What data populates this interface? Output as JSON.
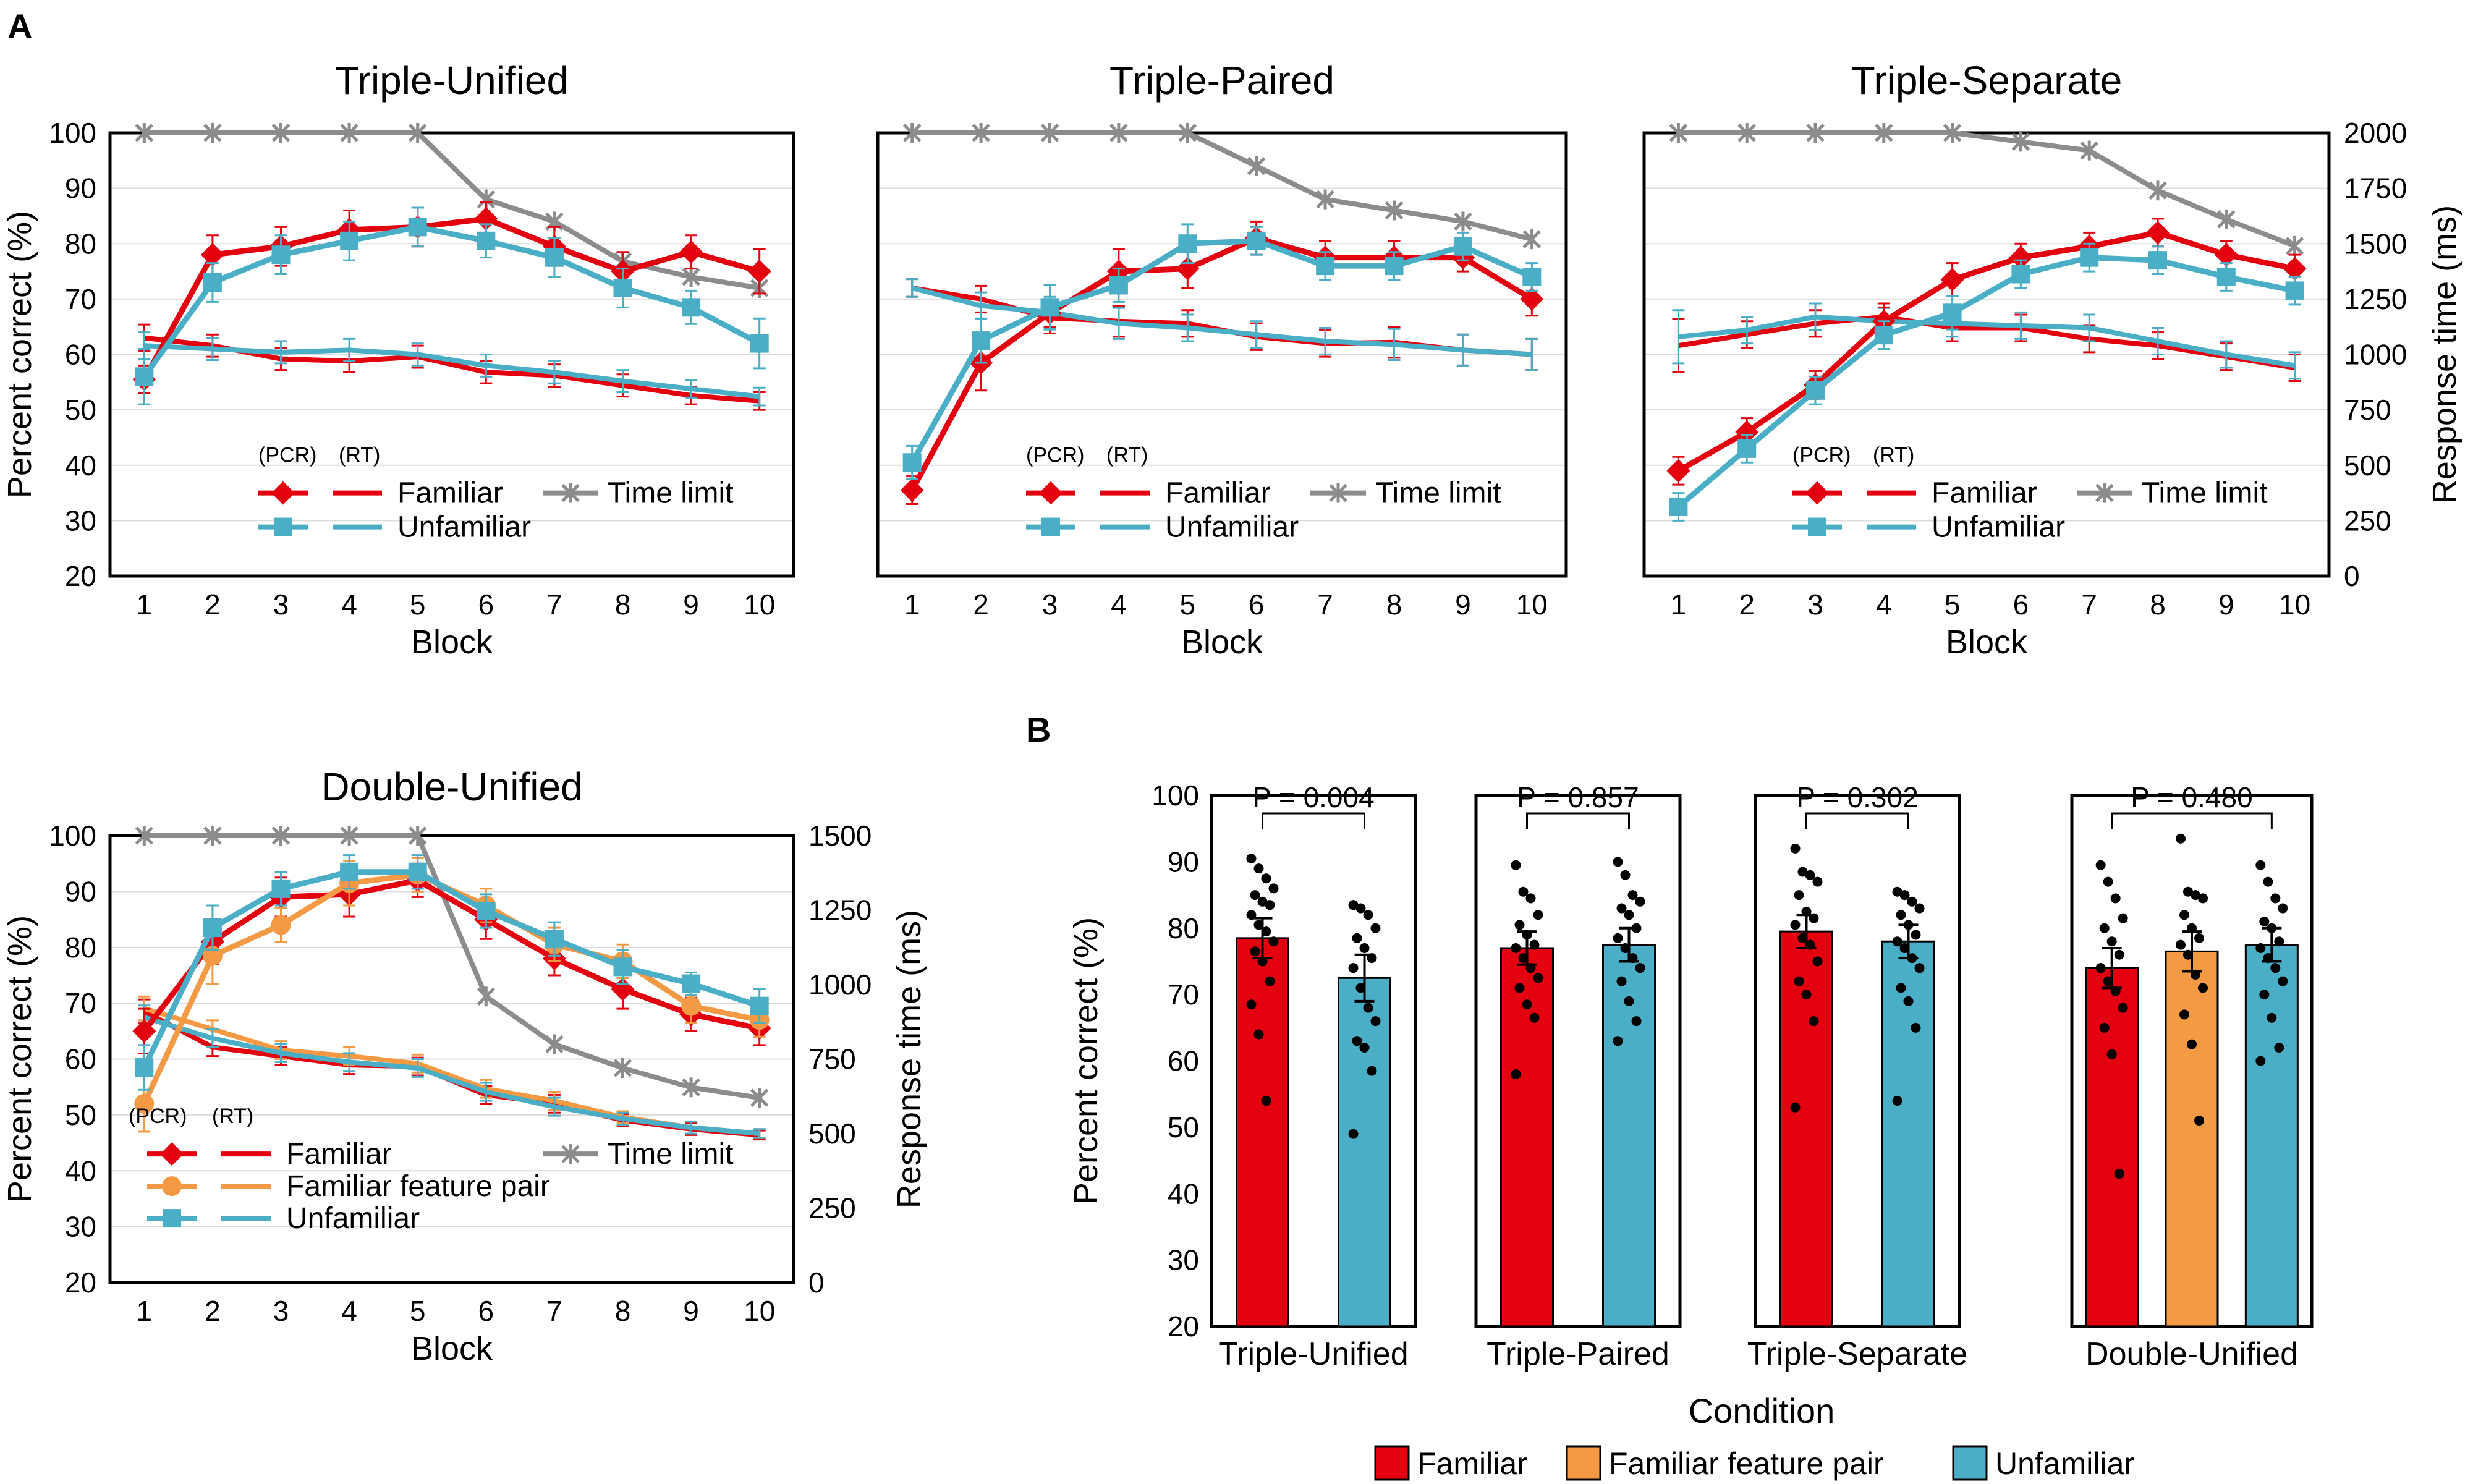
{
  "colors": {
    "familiar": "#e3000f",
    "familiar_pair": "#f49a44",
    "unfamiliar": "#4aaec6",
    "time_limit": "#8c8c8c"
  },
  "panel_labels": {
    "a": "A",
    "b": "B"
  },
  "legend_headers": {
    "pcr": "(PCR)",
    "rt": "(RT)"
  },
  "chart_data": [
    {
      "id": "triple-unified",
      "type": "line",
      "title": "Triple-Unified",
      "xlabel": "Block",
      "ylabel": "Percent correct (%)",
      "y2label": "",
      "x": [
        1,
        2,
        3,
        4,
        5,
        6,
        7,
        8,
        9,
        10
      ],
      "ylim": [
        20,
        100
      ],
      "yticks": [
        20,
        30,
        40,
        50,
        60,
        70,
        80,
        90,
        100
      ],
      "y2lim": [
        0,
        2000
      ],
      "y2ticks": [],
      "series": [
        {
          "key": "fam_pcr",
          "name": "Familiar",
          "kind": "pcr",
          "color": "familiar",
          "marker": "diamond",
          "values": [
            55.5,
            78,
            79.5,
            82.5,
            83,
            84.5,
            79.5,
            75,
            78.5,
            75
          ],
          "err": [
            2.5,
            3.5,
            3.5,
            3.5,
            3.5,
            3,
            3.5,
            3.5,
            3,
            4
          ]
        },
        {
          "key": "unf_pcr",
          "name": "Unfamiliar",
          "kind": "pcr",
          "color": "unfamiliar",
          "marker": "square",
          "values": [
            56,
            73,
            78,
            80.5,
            83,
            80.5,
            77.5,
            72,
            68.5,
            62
          ],
          "err": [
            5,
            3.5,
            3.5,
            3.5,
            3.5,
            3,
            3.5,
            3.5,
            3,
            4.5
          ]
        },
        {
          "key": "fam_rt",
          "name": "Familiar",
          "kind": "rt",
          "color": "familiar",
          "values": [
            1075,
            1040,
            980,
            970,
            990,
            920,
            905,
            860,
            815,
            790
          ],
          "err": [
            60,
            50,
            50,
            50,
            50,
            50,
            50,
            50,
            40,
            40
          ]
        },
        {
          "key": "unf_rt",
          "name": "Unfamiliar",
          "kind": "rt",
          "color": "unfamiliar",
          "values": [
            1040,
            1025,
            1010,
            1020,
            1000,
            950,
            920,
            880,
            845,
            810
          ],
          "err": [
            60,
            50,
            50,
            50,
            50,
            50,
            50,
            50,
            40,
            40
          ]
        },
        {
          "key": "tl",
          "name": "Time limit",
          "kind": "tl",
          "color": "time_limit",
          "values": [
            2000,
            2000,
            2000,
            2000,
            2000,
            1700,
            1600,
            1420,
            1350,
            1300
          ],
          "err": []
        }
      ]
    },
    {
      "id": "triple-paired",
      "type": "line",
      "title": "Triple-Paired",
      "xlabel": "Block",
      "ylabel": "",
      "y2label": "",
      "x": [
        1,
        2,
        3,
        4,
        5,
        6,
        7,
        8,
        9,
        10
      ],
      "ylim": [
        20,
        100
      ],
      "yticks": [],
      "y2lim": [
        0,
        2000
      ],
      "y2ticks": [],
      "series": [
        {
          "key": "fam_pcr",
          "name": "Familiar",
          "kind": "pcr",
          "color": "familiar",
          "marker": "diamond",
          "values": [
            35.5,
            58.5,
            67.5,
            75,
            75.5,
            81,
            77.5,
            77.5,
            77.5,
            70
          ],
          "err": [
            2.5,
            5,
            2.5,
            4,
            3.5,
            3,
            3,
            3,
            2.5,
            3
          ]
        },
        {
          "key": "unf_pcr",
          "name": "Unfamiliar",
          "kind": "pcr",
          "color": "unfamiliar",
          "marker": "square",
          "values": [
            40.5,
            62.5,
            68.5,
            72.5,
            80,
            80.5,
            76,
            76,
            79.5,
            74
          ],
          "err": [
            3,
            4,
            4,
            3,
            3.5,
            2.5,
            2.5,
            2.5,
            2.5,
            2.5
          ]
        },
        {
          "key": "fam_rt",
          "name": "Familiar",
          "kind": "rt",
          "color": "familiar",
          "values": [
            1300,
            1250,
            1165,
            1150,
            1140,
            1080,
            1050,
            1055,
            1020,
            1000
          ],
          "err": [
            40,
            60,
            70,
            70,
            60,
            60,
            60,
            70,
            70,
            70
          ]
        },
        {
          "key": "unf_rt",
          "name": "Unfamiliar",
          "kind": "rt",
          "color": "unfamiliar",
          "values": [
            1300,
            1220,
            1190,
            1140,
            1120,
            1090,
            1060,
            1045,
            1020,
            1000
          ],
          "err": [
            40,
            60,
            70,
            70,
            60,
            60,
            60,
            70,
            70,
            70
          ]
        },
        {
          "key": "tl",
          "name": "Time limit",
          "kind": "tl",
          "color": "time_limit",
          "values": [
            2000,
            2000,
            2000,
            2000,
            2000,
            1850,
            1700,
            1650,
            1600,
            1520
          ],
          "err": []
        }
      ]
    },
    {
      "id": "triple-separate",
      "type": "line",
      "title": "Triple-Separate",
      "xlabel": "Block",
      "ylabel": "",
      "y2label": "Response time (ms)",
      "x": [
        1,
        2,
        3,
        4,
        5,
        6,
        7,
        8,
        9,
        10
      ],
      "ylim": [
        20,
        100
      ],
      "yticks": [],
      "y2lim": [
        0,
        2000
      ],
      "y2ticks": [
        0,
        250,
        500,
        750,
        1000,
        1250,
        1500,
        1750,
        2000
      ],
      "series": [
        {
          "key": "fam_pcr",
          "name": "Familiar",
          "kind": "pcr",
          "color": "familiar",
          "marker": "diamond",
          "values": [
            39,
            46,
            54.5,
            66,
            73.5,
            77.5,
            79.5,
            82,
            78,
            75.5
          ],
          "err": [
            2.5,
            2.5,
            2.5,
            2.5,
            3,
            2.5,
            2.5,
            2.5,
            2.5,
            2.5
          ]
        },
        {
          "key": "unf_pcr",
          "name": "Unfamiliar",
          "kind": "pcr",
          "color": "unfamiliar",
          "marker": "square",
          "values": [
            32.5,
            43,
            53.5,
            63.5,
            67.5,
            74.5,
            77.5,
            77,
            74,
            71.5
          ],
          "err": [
            2.5,
            2.5,
            2.5,
            2.5,
            3,
            2.5,
            2.5,
            2.5,
            2.5,
            2.5
          ]
        },
        {
          "key": "fam_rt",
          "name": "Familiar",
          "kind": "rt",
          "color": "familiar",
          "values": [
            1040,
            1090,
            1140,
            1170,
            1120,
            1120,
            1070,
            1040,
            990,
            940
          ],
          "err": [
            120,
            60,
            60,
            60,
            60,
            60,
            60,
            60,
            60,
            60
          ]
        },
        {
          "key": "unf_rt",
          "name": "Unfamiliar",
          "kind": "rt",
          "color": "unfamiliar",
          "values": [
            1080,
            1110,
            1170,
            1150,
            1140,
            1130,
            1120,
            1060,
            1000,
            950
          ],
          "err": [
            120,
            60,
            60,
            60,
            60,
            60,
            60,
            60,
            60,
            60
          ]
        },
        {
          "key": "tl",
          "name": "Time limit",
          "kind": "tl",
          "color": "time_limit",
          "values": [
            2000,
            2000,
            2000,
            2000,
            2000,
            1960,
            1920,
            1740,
            1610,
            1490
          ],
          "err": []
        }
      ]
    },
    {
      "id": "double-unified",
      "type": "line",
      "title": "Double-Unified",
      "xlabel": "Block",
      "ylabel": "Percent correct (%)",
      "y2label": "Response time (ms)",
      "x": [
        1,
        2,
        3,
        4,
        5,
        6,
        7,
        8,
        9,
        10
      ],
      "ylim": [
        20,
        100
      ],
      "yticks": [
        20,
        30,
        40,
        50,
        60,
        70,
        80,
        90,
        100
      ],
      "y2lim": [
        0,
        1500
      ],
      "y2ticks": [
        0,
        250,
        500,
        750,
        1000,
        1250,
        1500
      ],
      "series": [
        {
          "key": "fam_pcr",
          "name": "Familiar",
          "kind": "pcr",
          "color": "familiar",
          "marker": "diamond",
          "values": [
            65,
            81,
            89,
            89.5,
            92,
            85,
            78,
            72.5,
            68,
            65.5
          ],
          "err": [
            4,
            4,
            3.5,
            4,
            3,
            3.5,
            3,
            3.5,
            3,
            3
          ]
        },
        {
          "key": "pair_pcr",
          "name": "Familiar feature pair",
          "kind": "pcr",
          "color": "familiar_pair",
          "marker": "circle",
          "values": [
            52,
            78.5,
            84,
            91.5,
            93,
            87.5,
            80.5,
            77.5,
            69.5,
            67
          ],
          "err": [
            5,
            5,
            3,
            4,
            3,
            3,
            3,
            3,
            3,
            3
          ]
        },
        {
          "key": "unf_pcr",
          "name": "Unfamiliar",
          "kind": "pcr",
          "color": "unfamiliar",
          "marker": "square",
          "values": [
            58.5,
            83.5,
            90.5,
            93.5,
            93.5,
            86.5,
            81.5,
            76.5,
            73.5,
            69.5
          ],
          "err": [
            4,
            4,
            3,
            3,
            3,
            3,
            3,
            3,
            2,
            3
          ]
        },
        {
          "key": "fam_rt",
          "name": "Familiar",
          "kind": "rt",
          "color": "familiar",
          "values": [
            910,
            790,
            760,
            730,
            725,
            630,
            600,
            545,
            515,
            495
          ],
          "err": [
            40,
            30,
            30,
            30,
            30,
            30,
            30,
            20,
            20,
            15
          ]
        },
        {
          "key": "pair_rt",
          "name": "Familiar feature pair",
          "kind": "rt",
          "color": "familiar_pair",
          "values": [
            920,
            850,
            780,
            760,
            735,
            650,
            610,
            555,
            520,
            500
          ],
          "err": [
            40,
            30,
            30,
            30,
            30,
            30,
            30,
            20,
            20,
            15
          ]
        },
        {
          "key": "unf_rt",
          "name": "Unfamiliar",
          "kind": "rt",
          "color": "unfamiliar",
          "values": [
            890,
            820,
            770,
            740,
            720,
            640,
            590,
            550,
            520,
            500
          ],
          "err": [
            40,
            30,
            30,
            30,
            30,
            30,
            30,
            20,
            20,
            15
          ]
        },
        {
          "key": "tl",
          "name": "Time limit",
          "kind": "tl",
          "color": "time_limit",
          "values": [
            1500,
            1500,
            1500,
            1500,
            1500,
            960,
            800,
            720,
            655,
            620
          ],
          "err": []
        }
      ]
    },
    {
      "id": "bars",
      "type": "bar",
      "xlabel": "Condition",
      "ylabel": "Percent correct (%)",
      "ylim": [
        20,
        100
      ],
      "yticks": [
        20,
        30,
        40,
        50,
        60,
        70,
        80,
        90,
        100
      ],
      "legend": [
        {
          "name": "Familiar",
          "color": "familiar"
        },
        {
          "name": "Familiar feature pair",
          "color": "familiar_pair"
        },
        {
          "name": "Unfamiliar",
          "color": "unfamiliar"
        }
      ],
      "groups": [
        {
          "name": "Triple-Unified",
          "p": "P = 0.004",
          "bars": [
            {
              "name": "Familiar",
              "color": "familiar",
              "mean": 78.5,
              "sem": 3,
              "points": [
                90.5,
                89,
                87.5,
                86,
                85,
                84,
                83.5,
                82,
                80.5,
                79.5,
                78,
                76.5,
                75,
                72,
                68.5,
                64,
                54
              ]
            },
            {
              "name": "Unfamiliar",
              "color": "unfamiliar",
              "mean": 72.5,
              "sem": 3.5,
              "points": [
                83.5,
                83,
                82,
                80,
                78.5,
                77,
                75.5,
                74,
                71,
                68,
                66,
                63,
                62,
                58.5,
                49
              ]
            }
          ]
        },
        {
          "name": "Triple-Paired",
          "p": "P = 0.857",
          "bars": [
            {
              "name": "Familiar",
              "color": "familiar",
              "mean": 77,
              "sem": 2.5,
              "points": [
                89.5,
                85.5,
                84.5,
                82,
                80.5,
                79,
                77.5,
                77,
                75.5,
                74,
                72.5,
                71,
                68.5,
                66.5,
                58
              ]
            },
            {
              "name": "Unfamiliar",
              "color": "unfamiliar",
              "mean": 77.5,
              "sem": 2.5,
              "points": [
                90,
                88,
                85,
                84,
                83,
                82,
                80,
                78.5,
                77,
                75.5,
                74,
                72,
                69,
                66,
                63
              ]
            }
          ]
        },
        {
          "name": "Triple-Separate",
          "p": "P = 0.302",
          "bars": [
            {
              "name": "Familiar",
              "color": "familiar",
              "mean": 79.5,
              "sem": 2.5,
              "points": [
                92,
                88.5,
                88,
                87,
                85,
                82.5,
                81.5,
                80.5,
                78.5,
                77.5,
                75,
                72,
                70,
                66,
                53
              ]
            },
            {
              "name": "Unfamiliar",
              "color": "unfamiliar",
              "mean": 78,
              "sem": 2.5,
              "points": [
                85.5,
                85,
                84,
                83,
                82,
                80.5,
                79,
                78,
                77,
                75.5,
                74,
                71,
                69,
                65,
                54
              ]
            }
          ]
        },
        {
          "name": "Double-Unified",
          "p": "P = 0.480",
          "bars": [
            {
              "name": "Familiar",
              "color": "familiar",
              "mean": 74,
              "sem": 3,
              "points": [
                89.5,
                87,
                84.5,
                81.5,
                80,
                78,
                76,
                74,
                72,
                70.5,
                68,
                65,
                61,
                43
              ]
            },
            {
              "name": "Familiar feature pair",
              "color": "familiar_pair",
              "mean": 76.5,
              "sem": 3,
              "points": [
                93.5,
                85.5,
                85,
                84.5,
                82,
                80,
                78.5,
                77.5,
                76,
                73,
                71,
                67,
                62.5,
                51
              ]
            },
            {
              "name": "Unfamiliar",
              "color": "unfamiliar",
              "mean": 77.5,
              "sem": 2.5,
              "points": [
                89.5,
                87,
                84.5,
                83,
                81,
                80,
                78,
                77,
                75.5,
                74,
                72,
                70,
                66.5,
                62,
                60
              ]
            }
          ]
        }
      ]
    }
  ]
}
